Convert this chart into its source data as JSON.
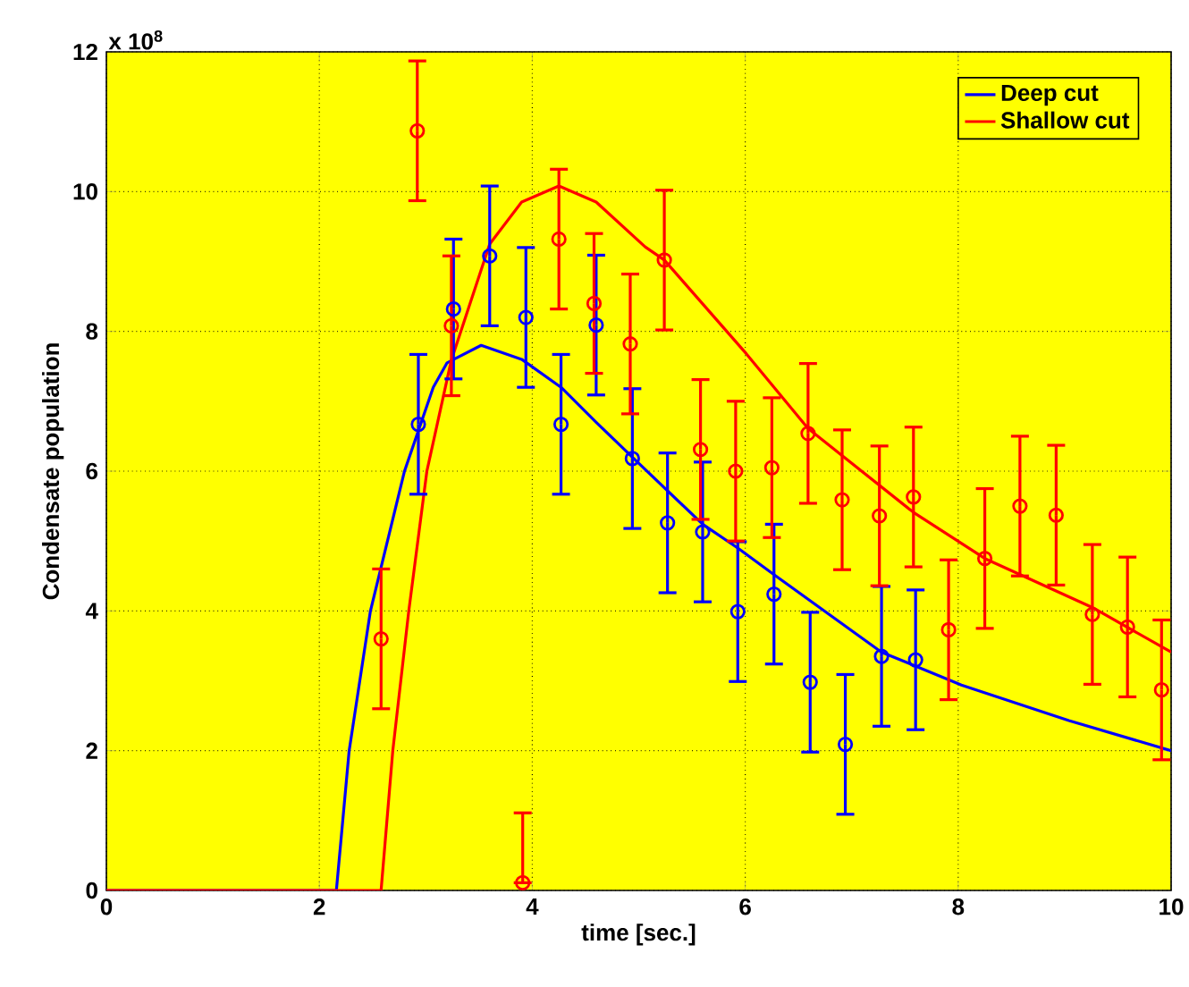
{
  "chart_data": {
    "type": "line",
    "xlabel": "time [sec.]",
    "ylabel": "Condensate population",
    "annotations": [
      "x 10$^{8}$"
    ],
    "xlim": [
      0,
      10
    ],
    "ylim": [
      0,
      12
    ],
    "xticks": [
      0,
      2,
      4,
      6,
      8,
      10
    ],
    "yticks": [
      0,
      2,
      4,
      6,
      8,
      10,
      12
    ],
    "grid": true,
    "legend": "top right",
    "series": [
      {
        "name": "Deep cut",
        "color": "#0000ff",
        "x": [
          0,
          2.16,
          2.28,
          2.48,
          2.8,
          3.07,
          3.2,
          3.52,
          3.9,
          4.27,
          4.6,
          4.94,
          5.6,
          5.93,
          6.27,
          7.28,
          8.03,
          9.04,
          10
        ],
        "values": [
          0,
          0,
          2,
          4,
          6,
          7.2,
          7.55,
          7.8,
          7.6,
          7.2,
          6.7,
          6.2,
          5.24,
          4.9,
          4.52,
          3.41,
          2.94,
          2.43,
          2.0
        ]
      },
      {
        "name": "Shallow cut",
        "color": "#ff0000",
        "x": [
          0,
          2.58,
          2.69,
          2.84,
          3.01,
          3.24,
          3.6,
          3.9,
          4.25,
          4.6,
          5.06,
          5.24,
          6.01,
          6.59,
          7.58,
          8.25,
          9.26,
          10
        ],
        "values": [
          0,
          0,
          2,
          4,
          6,
          7.59,
          9.25,
          9.85,
          10.08,
          9.85,
          9.21,
          9.02,
          7.68,
          6.61,
          5.41,
          4.75,
          4.05,
          3.41
        ]
      },
      {
        "type": "scatter",
        "color": "#0000ff",
        "marker": "circle",
        "x": [
          2.93,
          3.26,
          3.6,
          3.94,
          4.27,
          4.6,
          4.94,
          5.27,
          5.6,
          5.93,
          6.27,
          6.61,
          6.94,
          7.28,
          7.6
        ],
        "values": [
          6.67,
          8.32,
          9.08,
          8.2,
          6.67,
          8.09,
          6.18,
          5.26,
          5.13,
          3.99,
          4.24,
          2.98,
          2.09,
          3.35,
          3.3
        ],
        "errors": [
          1,
          1,
          1,
          1,
          1,
          1,
          1,
          1,
          1,
          1,
          1,
          1,
          1,
          1,
          1
        ]
      },
      {
        "type": "scatter",
        "color": "#ff0000",
        "marker": "circle",
        "x": [
          2.58,
          2.92,
          3.24,
          3.91,
          4.25,
          4.58,
          4.92,
          5.24,
          5.58,
          5.91,
          6.25,
          6.59,
          6.91,
          7.26,
          7.58,
          7.91,
          8.25,
          8.58,
          8.92,
          9.26,
          9.59,
          9.91
        ],
        "values": [
          3.6,
          10.87,
          8.08,
          0.11,
          9.32,
          8.4,
          7.82,
          9.02,
          6.31,
          6.0,
          6.05,
          6.54,
          5.59,
          5.36,
          5.63,
          3.73,
          4.75,
          5.5,
          5.37,
          3.95,
          3.77,
          2.87
        ],
        "errors": [
          1,
          1,
          1,
          [
            0.11,
            1.11
          ],
          1,
          1,
          1,
          1,
          1,
          1,
          1,
          1,
          1,
          1,
          1,
          1,
          1,
          1,
          1,
          1,
          1,
          1
        ]
      }
    ]
  }
}
